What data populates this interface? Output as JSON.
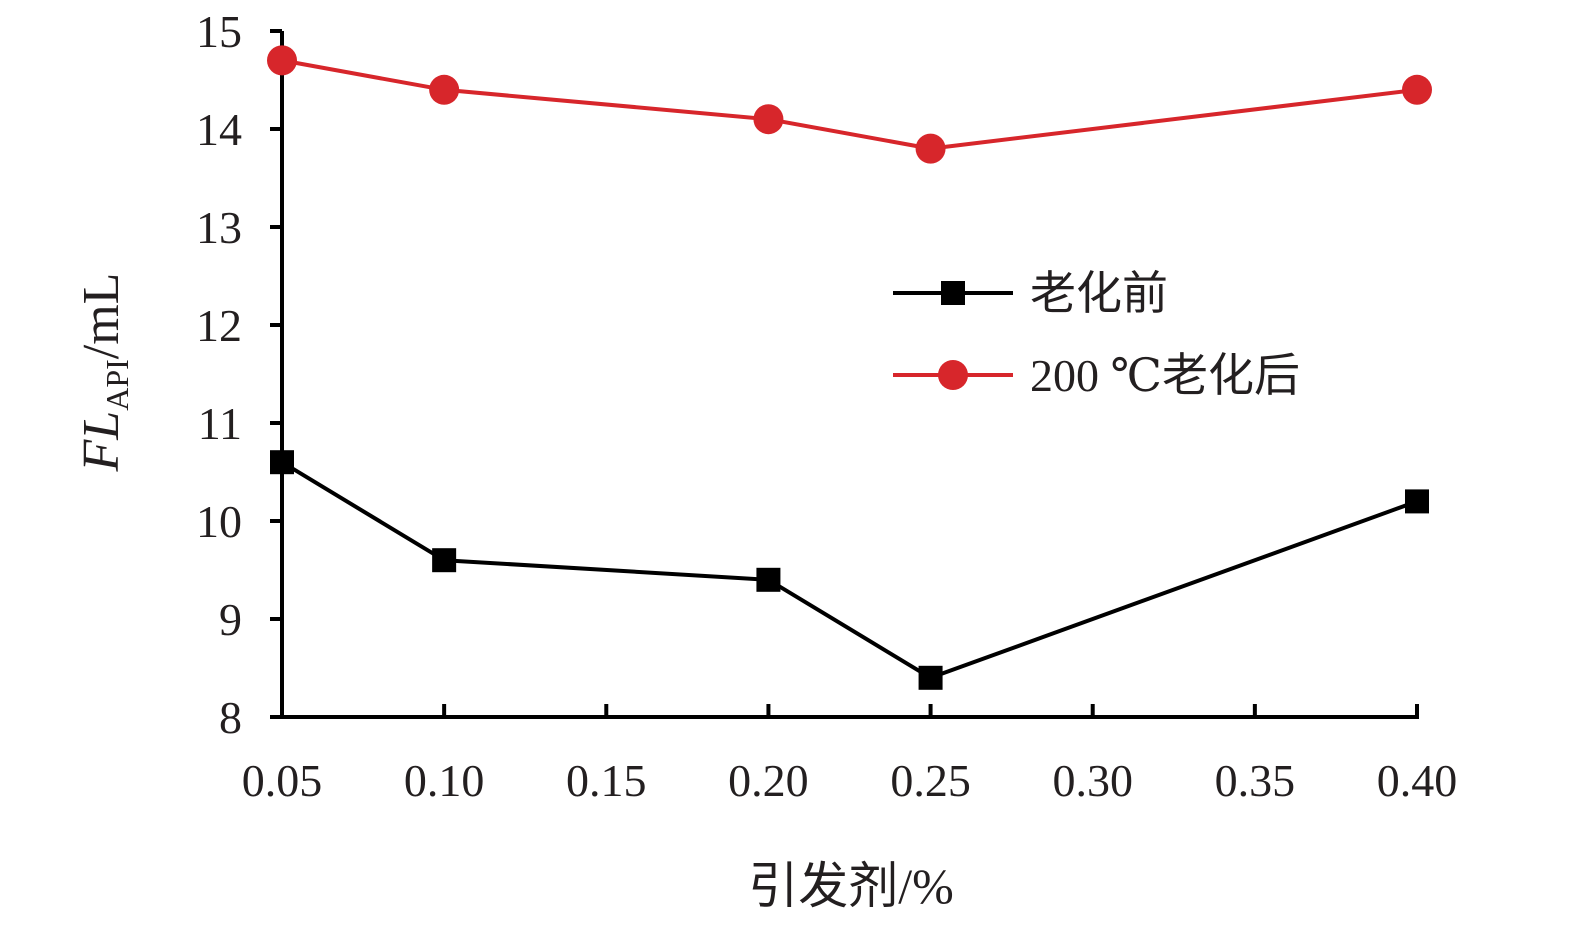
{
  "chart_data": {
    "type": "line",
    "title": "",
    "xlabel": "引发剂/%",
    "ylabel": {
      "italic": "FL",
      "subscript": "API",
      "unit": "/mL"
    },
    "x_ticks": [
      "0.05",
      "0.10",
      "0.15",
      "0.20",
      "0.25",
      "0.30",
      "0.35",
      "0.40"
    ],
    "y_ticks": [
      "8",
      "9",
      "10",
      "11",
      "12",
      "13",
      "14",
      "15"
    ],
    "ylim": [
      8,
      15
    ],
    "xlim": [
      0.05,
      0.4
    ],
    "grid": false,
    "legend_position": "right, upper-middle",
    "series": [
      {
        "name": "老化前",
        "color": "#000000",
        "marker": "square",
        "x": [
          0.05,
          0.1,
          0.2,
          0.25,
          0.4
        ],
        "values": [
          10.6,
          9.6,
          9.4,
          8.4,
          10.2
        ]
      },
      {
        "name": "200 ℃老化后",
        "color": "#d7262b",
        "marker": "circle",
        "x": [
          0.05,
          0.1,
          0.2,
          0.25,
          0.4
        ],
        "values": [
          14.7,
          14.4,
          14.1,
          13.8,
          14.4
        ]
      }
    ]
  }
}
